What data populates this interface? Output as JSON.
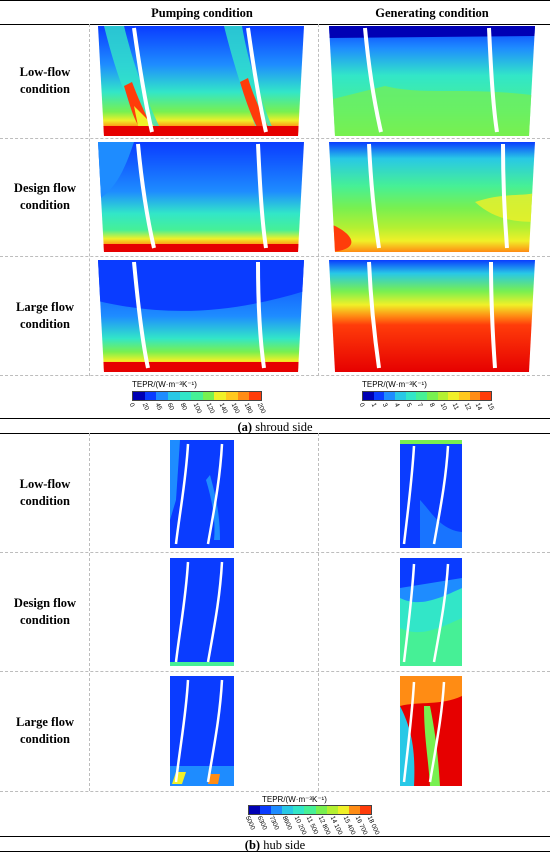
{
  "columns": [
    "Pumping condition",
    "Generating condition"
  ],
  "rows": [
    [
      "Low-flow",
      "condition"
    ],
    [
      "Design flow",
      "condition"
    ],
    [
      "Large flow",
      "condition"
    ]
  ],
  "shroud_colorbar": {
    "title": "TEPR/(W·m⁻³K⁻¹)",
    "ticks": [
      "0",
      "20",
      "45",
      "60",
      "80",
      "100",
      "120",
      "140",
      "160",
      "180",
      "200"
    ]
  },
  "generating_colorbar": {
    "title": "TEPR/(W·m⁻³K⁻¹)",
    "ticks": [
      "0",
      "1",
      "3",
      "4",
      "5",
      "7",
      "8",
      "10",
      "11",
      "12",
      "14",
      "15"
    ]
  },
  "hub_colorbar": {
    "title": "TEPR/(W·m⁻³K⁻¹)",
    "ticks": [
      "5000",
      "6300",
      "7300",
      "8600",
      "10 200",
      "11 500",
      "12 800",
      "14 100",
      "15 400",
      "16 700",
      "18 000"
    ]
  },
  "captions": {
    "a_label": "(a)",
    "a_text": " shroud side",
    "b_label": "(b)",
    "b_text": " hub side"
  },
  "colors": {
    "contour_scale": [
      "#0000b4",
      "#0a3cff",
      "#1e8cff",
      "#28c8e6",
      "#32e6c8",
      "#46f096",
      "#78f050",
      "#b4f032",
      "#f0f028",
      "#ffc81e",
      "#ff8c14",
      "#ff3c0a",
      "#e60000"
    ]
  }
}
